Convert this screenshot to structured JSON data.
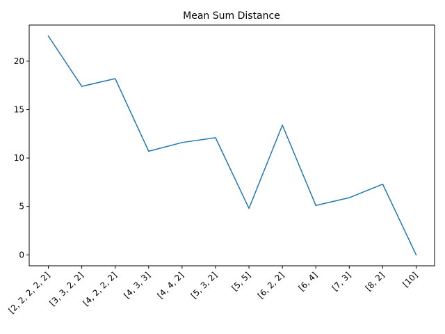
{
  "chart_data": {
    "type": "line",
    "title": "Mean Sum Distance",
    "xlabel": "",
    "ylabel": "",
    "categories": [
      "[2, 2, 2, 2, 2]",
      "[3, 3, 2, 2]",
      "[4, 2, 2, 2]",
      "[4, 3, 3]",
      "[4, 4, 2]",
      "[5, 3, 2]",
      "[5, 5]",
      "[6, 2, 2]",
      "[6, 4]",
      "[7, 3]",
      "[8, 2]",
      "[10]"
    ],
    "series": [
      {
        "values": [
          22.6,
          17.4,
          18.2,
          10.7,
          11.6,
          12.1,
          4.8,
          13.4,
          5.1,
          5.9,
          7.3,
          0.0
        ]
      }
    ],
    "ylim": [
      -1.13,
      23.73
    ],
    "yticks": [
      0,
      5,
      10,
      15,
      20
    ],
    "ytick_labels": [
      "0",
      "5",
      "10",
      "15",
      "20"
    ],
    "grid": false,
    "colors": {
      "line": "#1f77b4",
      "axes": "#000000"
    }
  }
}
